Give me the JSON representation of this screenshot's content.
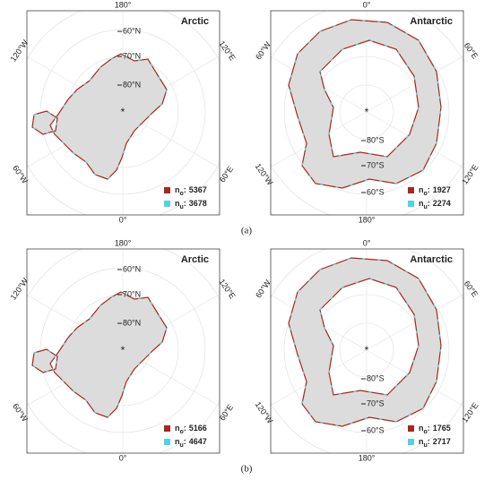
{
  "panels": [
    {
      "label": "(a)",
      "maps": [
        {
          "title": "Arctic",
          "meridians": {
            "top": "180°",
            "bottom": "0°",
            "top_left": "120°W",
            "top_right": "120°E",
            "bottom_left": "60°W",
            "bottom_right": "60°E"
          },
          "parallels": [
            "60°N",
            "70°N",
            "80°N"
          ],
          "center_mark": "*",
          "legend": [
            {
              "symbol": "n",
              "subscript": "o",
              "separator": ":",
              "count": 5367,
              "color": "#a8261b"
            },
            {
              "symbol": "n",
              "subscript": "u",
              "separator": ":",
              "count": 3678,
              "color": "#4fd3e8"
            }
          ]
        },
        {
          "title": "Antarctic",
          "meridians": {
            "top": "0°",
            "bottom": "180°",
            "top_left": "60°W",
            "top_right": "60°E",
            "bottom_left": "120°W",
            "bottom_right": "120°E"
          },
          "parallels": [
            "80°S",
            "70°S",
            "60°S"
          ],
          "center_mark": "*",
          "legend": [
            {
              "symbol": "n",
              "subscript": "o",
              "separator": ":",
              "count": 1927,
              "color": "#a8261b"
            },
            {
              "symbol": "n",
              "subscript": "u",
              "separator": ":",
              "count": 2274,
              "color": "#4fd3e8"
            }
          ]
        }
      ]
    },
    {
      "label": "(b)",
      "maps": [
        {
          "title": "Arctic",
          "meridians": {
            "top": "180°",
            "bottom": "0°",
            "top_left": "120°W",
            "top_right": "120°E",
            "bottom_left": "60°W",
            "bottom_right": "60°E"
          },
          "parallels": [
            "60°N",
            "70°N",
            "80°N"
          ],
          "center_mark": "*",
          "legend": [
            {
              "symbol": "n",
              "subscript": "o",
              "separator": ":",
              "count": 5166,
              "color": "#a8261b"
            },
            {
              "symbol": "n",
              "subscript": "u",
              "separator": ":",
              "count": 4647,
              "color": "#4fd3e8"
            }
          ]
        },
        {
          "title": "Antarctic",
          "meridians": {
            "top": "0°",
            "bottom": "180°",
            "top_left": "60°W",
            "top_right": "60°E",
            "bottom_left": "120°W",
            "bottom_right": "120°E"
          },
          "parallels": [
            "80°S",
            "70°S",
            "60°S"
          ],
          "center_mark": "*",
          "legend": [
            {
              "symbol": "n",
              "subscript": "o",
              "separator": ":",
              "count": 1765,
              "color": "#a8261b"
            },
            {
              "symbol": "n",
              "subscript": "u",
              "separator": ":",
              "count": 2717,
              "color": "#4fd3e8"
            }
          ]
        }
      ]
    }
  ]
}
